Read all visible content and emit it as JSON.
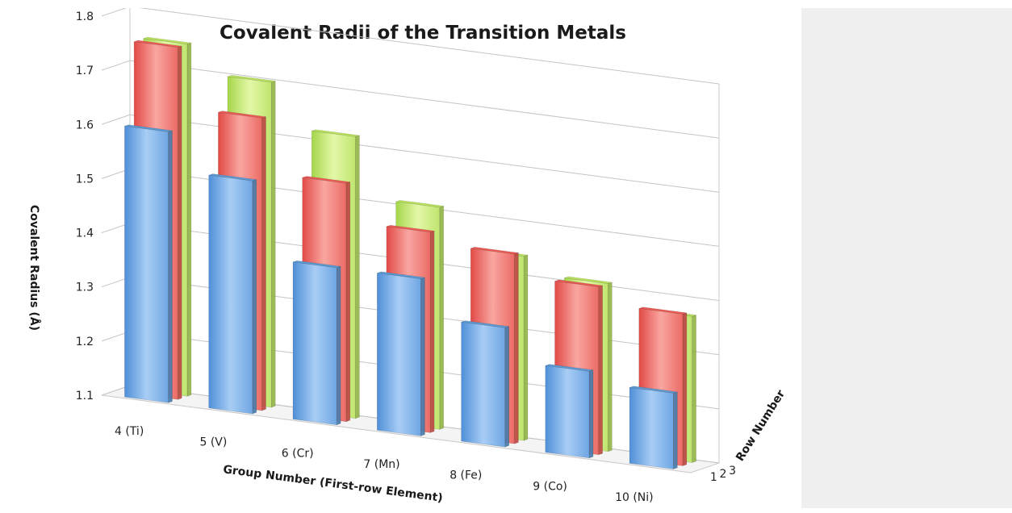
{
  "chart_data": {
    "type": "bar",
    "variant": "3d-column",
    "title": "Covalent Radii of the Transition Metals",
    "xlabel": "Group Number (First-row Element)",
    "ylabel": "Covalent Radius (Å)",
    "zlabel": "Row Number",
    "categories": [
      "4 (Ti)",
      "5 (V)",
      "6 (Cr)",
      "7 (Mn)",
      "8 (Fe)",
      "9 (Co)",
      "10 (Ni)"
    ],
    "ylim": [
      1.1,
      1.8
    ],
    "yticks": [
      "1.8",
      "1.7",
      "1.6",
      "1.5",
      "1.4",
      "1.3",
      "1.2",
      "1.1"
    ],
    "row_ticks": [
      "1",
      "2",
      "3"
    ],
    "series": [
      {
        "name": "1",
        "color": "#5b9bd5",
        "values": [
          1.6,
          1.53,
          1.39,
          1.39,
          1.32,
          1.26,
          1.24
        ]
      },
      {
        "name": "2",
        "color": "#ec5a56",
        "values": [
          1.75,
          1.64,
          1.54,
          1.47,
          1.45,
          1.41,
          1.38
        ]
      },
      {
        "name": "3",
        "color": "#b9e25c",
        "values": [
          1.75,
          1.7,
          1.62,
          1.51,
          1.44,
          1.41,
          1.37
        ]
      }
    ],
    "grid": true,
    "legend": "none"
  }
}
